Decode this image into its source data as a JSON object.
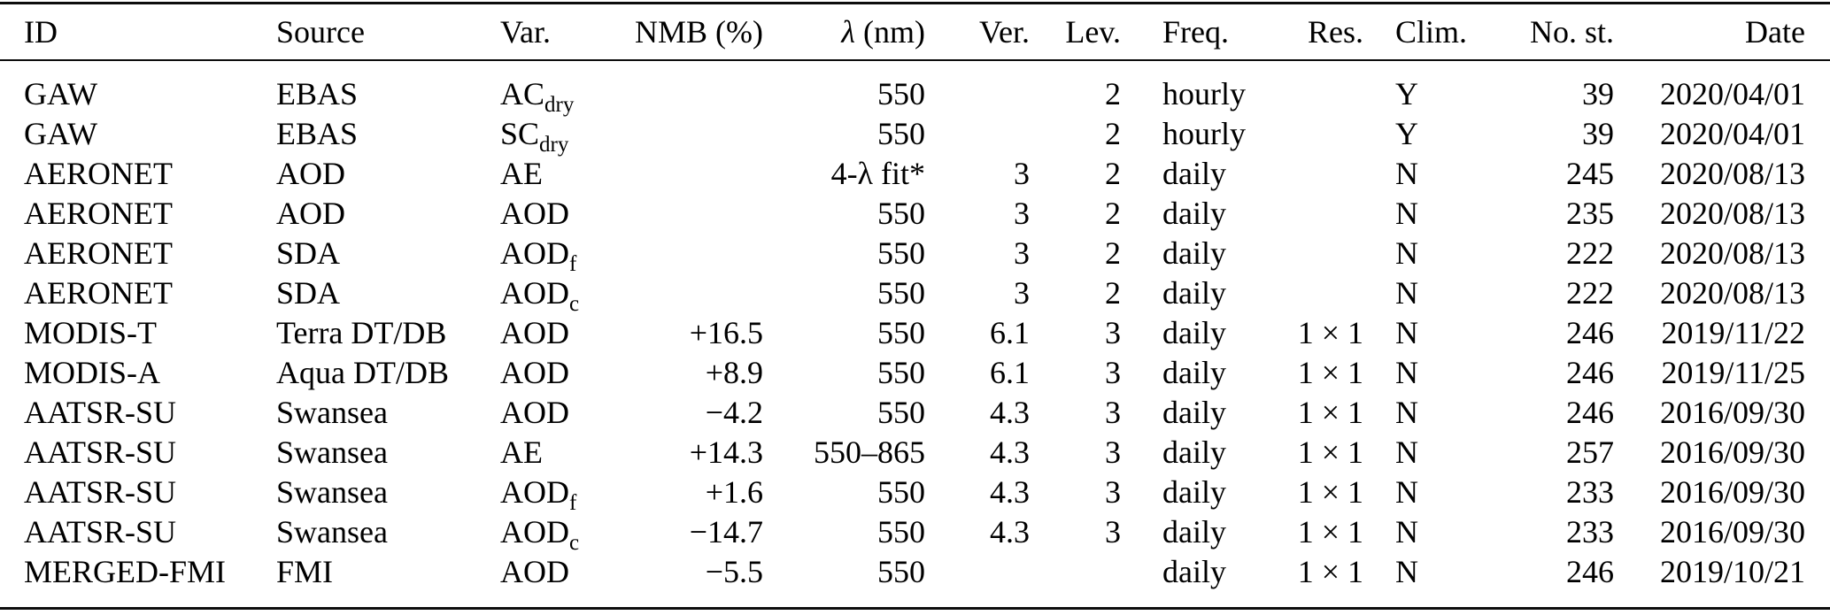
{
  "table": {
    "columns": [
      {
        "key": "id",
        "label": "ID",
        "align": "left"
      },
      {
        "key": "source",
        "label": "Source",
        "align": "left"
      },
      {
        "key": "var",
        "label": "Var.",
        "align": "left"
      },
      {
        "key": "nmb",
        "label": "NMB (%)",
        "align": "right"
      },
      {
        "key": "lambda",
        "label_math": "λ",
        "label": " (nm)",
        "align": "right"
      },
      {
        "key": "ver",
        "label": "Ver.",
        "align": "right"
      },
      {
        "key": "lev",
        "label": "Lev.",
        "align": "right"
      },
      {
        "key": "freq",
        "label": "Freq.",
        "align": "left"
      },
      {
        "key": "res",
        "label": "Res.",
        "align": "right"
      },
      {
        "key": "clim",
        "label": "Clim.",
        "align": "left"
      },
      {
        "key": "nost",
        "label": "No. st.",
        "align": "right"
      },
      {
        "key": "date",
        "label": "Date",
        "align": "right"
      }
    ],
    "rows": [
      {
        "id": "GAW",
        "source": "EBAS",
        "var": {
          "base": "AC",
          "sub": "dry"
        },
        "nmb": "",
        "lambda": "550",
        "ver": "",
        "lev": "2",
        "freq": "hourly",
        "res": "",
        "clim": "Y",
        "nost": "39",
        "date": "2020/04/01"
      },
      {
        "id": "GAW",
        "source": "EBAS",
        "var": {
          "base": "SC",
          "sub": "dry"
        },
        "nmb": "",
        "lambda": "550",
        "ver": "",
        "lev": "2",
        "freq": "hourly",
        "res": "",
        "clim": "Y",
        "nost": "39",
        "date": "2020/04/01"
      },
      {
        "id": "AERONET",
        "source": "AOD",
        "var": {
          "base": "AE",
          "sub": ""
        },
        "nmb": "",
        "lambda": "4-λ fit*",
        "ver": "3",
        "lev": "2",
        "freq": "daily",
        "res": "",
        "clim": "N",
        "nost": "245",
        "date": "2020/08/13"
      },
      {
        "id": "AERONET",
        "source": "AOD",
        "var": {
          "base": "AOD",
          "sub": ""
        },
        "nmb": "",
        "lambda": "550",
        "ver": "3",
        "lev": "2",
        "freq": "daily",
        "res": "",
        "clim": "N",
        "nost": "235",
        "date": "2020/08/13"
      },
      {
        "id": "AERONET",
        "source": "SDA",
        "var": {
          "base": "AOD",
          "sub": "f"
        },
        "nmb": "",
        "lambda": "550",
        "ver": "3",
        "lev": "2",
        "freq": "daily",
        "res": "",
        "clim": "N",
        "nost": "222",
        "date": "2020/08/13"
      },
      {
        "id": "AERONET",
        "source": "SDA",
        "var": {
          "base": "AOD",
          "sub": "c"
        },
        "nmb": "",
        "lambda": "550",
        "ver": "3",
        "lev": "2",
        "freq": "daily",
        "res": "",
        "clim": "N",
        "nost": "222",
        "date": "2020/08/13"
      },
      {
        "id": "MODIS-T",
        "source": "Terra DT/DB",
        "var": {
          "base": "AOD",
          "sub": ""
        },
        "nmb": "+16.5",
        "lambda": "550",
        "ver": "6.1",
        "lev": "3",
        "freq": "daily",
        "res": "1 × 1",
        "clim": "N",
        "nost": "246",
        "date": "2019/11/22"
      },
      {
        "id": "MODIS-A",
        "source": "Aqua DT/DB",
        "var": {
          "base": "AOD",
          "sub": ""
        },
        "nmb": "+8.9",
        "lambda": "550",
        "ver": "6.1",
        "lev": "3",
        "freq": "daily",
        "res": "1 × 1",
        "clim": "N",
        "nost": "246",
        "date": "2019/11/25"
      },
      {
        "id": "AATSR-SU",
        "source": "Swansea",
        "var": {
          "base": "AOD",
          "sub": ""
        },
        "nmb": "−4.2",
        "lambda": "550",
        "ver": "4.3",
        "lev": "3",
        "freq": "daily",
        "res": "1 × 1",
        "clim": "N",
        "nost": "246",
        "date": "2016/09/30"
      },
      {
        "id": "AATSR-SU",
        "source": "Swansea",
        "var": {
          "base": "AE",
          "sub": ""
        },
        "nmb": "+14.3",
        "lambda": "550–865",
        "ver": "4.3",
        "lev": "3",
        "freq": "daily",
        "res": "1 × 1",
        "clim": "N",
        "nost": "257",
        "date": "2016/09/30"
      },
      {
        "id": "AATSR-SU",
        "source": "Swansea",
        "var": {
          "base": "AOD",
          "sub": "f"
        },
        "nmb": "+1.6",
        "lambda": "550",
        "ver": "4.3",
        "lev": "3",
        "freq": "daily",
        "res": "1 × 1",
        "clim": "N",
        "nost": "233",
        "date": "2016/09/30"
      },
      {
        "id": "AATSR-SU",
        "source": "Swansea",
        "var": {
          "base": "AOD",
          "sub": "c"
        },
        "nmb": "−14.7",
        "lambda": "550",
        "ver": "4.3",
        "lev": "3",
        "freq": "daily",
        "res": "1 × 1",
        "clim": "N",
        "nost": "233",
        "date": "2016/09/30"
      },
      {
        "id": "MERGED-FMI",
        "source": "FMI",
        "var": {
          "base": "AOD",
          "sub": ""
        },
        "nmb": "−5.5",
        "lambda": "550",
        "ver": "",
        "lev": "",
        "freq": "daily",
        "res": "1 × 1",
        "clim": "N",
        "nost": "246",
        "date": "2019/10/21"
      }
    ]
  }
}
